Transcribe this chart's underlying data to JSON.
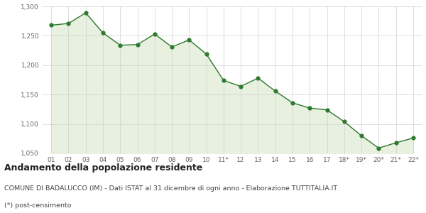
{
  "x_labels": [
    "01",
    "02",
    "03",
    "04",
    "05",
    "06",
    "07",
    "08",
    "09",
    "10",
    "11*",
    "12",
    "13",
    "14",
    "15",
    "16",
    "17",
    "18*",
    "19*",
    "20*",
    "21*",
    "22*"
  ],
  "y_values": [
    1268,
    1271,
    1289,
    1255,
    1234,
    1235,
    1253,
    1231,
    1243,
    1219,
    1174,
    1164,
    1178,
    1156,
    1136,
    1127,
    1124,
    1104,
    1080,
    1059,
    1068,
    1076
  ],
  "line_color": "#2d7a2d",
  "fill_color": "#e8f0e0",
  "marker_color": "#2d7a2d",
  "background_color": "#ffffff",
  "grid_color": "#d0d0d0",
  "ylim_min": 1050,
  "ylim_max": 1300,
  "ytick_step": 50,
  "title": "Andamento della popolazione residente",
  "subtitle": "COMUNE DI BADALUCCO (IM) - Dati ISTAT al 31 dicembre di ogni anno - Elaborazione TUTTITALIA.IT",
  "footnote": "(*) post-censimento",
  "title_fontsize": 9,
  "subtitle_fontsize": 6.8,
  "footnote_fontsize": 6.8,
  "tick_fontsize": 6.5
}
